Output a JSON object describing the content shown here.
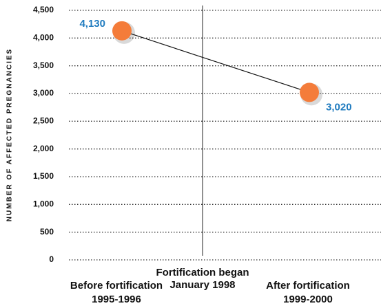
{
  "chart_data": {
    "type": "line",
    "y_label": "NUMBER OF AFFECTED PREGNANCIES",
    "categories": [
      [
        "Before fortification",
        "1995-1996"
      ],
      [
        "After fortification",
        "1999-2000"
      ]
    ],
    "series": [
      {
        "color": "#f47c3a",
        "values": [
          4130,
          3020
        ],
        "value_labels": [
          "4,130",
          "3,020"
        ],
        "label_color": "#1f7bbf"
      }
    ],
    "annotation": [
      "Fortification began",
      "January 1998"
    ],
    "ylim": [
      0,
      4500
    ],
    "yticks": [
      0,
      500,
      {
        "value": 1000,
        "label": "1,000"
      },
      {
        "value": 1500,
        "label": "1,500"
      },
      {
        "value": 2000,
        "label": "2,000"
      },
      {
        "value": 2500,
        "label": "2,500"
      },
      {
        "value": 3000,
        "label": "3,000"
      },
      {
        "value": 3500,
        "label": "3,500"
      },
      {
        "value": 4000,
        "label": "4,000"
      },
      {
        "value": 4500,
        "label": "4,500"
      }
    ],
    "grid": true
  }
}
